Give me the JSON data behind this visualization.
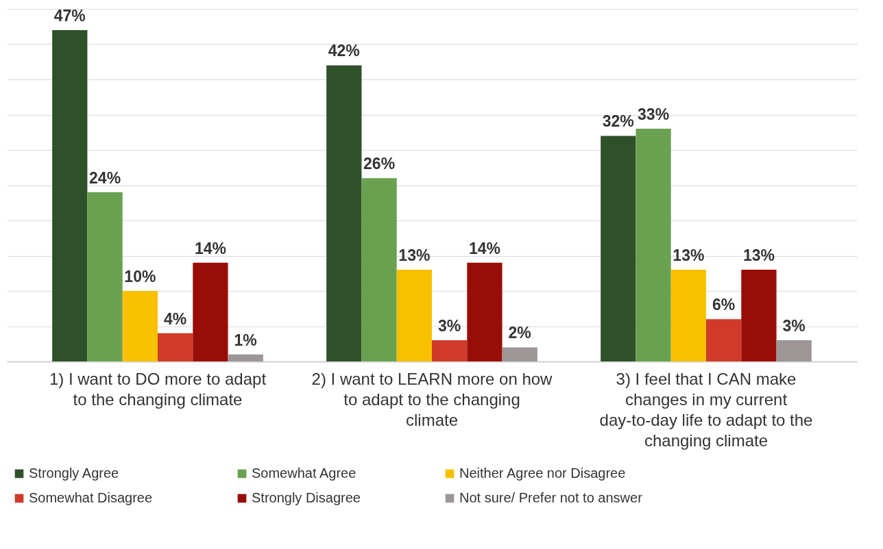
{
  "chart_data": {
    "type": "bar",
    "categories": [
      "1) I want to DO more to adapt to the changing climate",
      "2) I want to LEARN more on how to adapt to the changing climate",
      "3) I feel that I CAN make changes in my current day-to-day life to adapt to the changing climate"
    ],
    "series": [
      {
        "name": "Strongly Agree",
        "color": "#2e5129",
        "values": [
          47,
          42,
          32
        ],
        "value_labels": [
          "47%",
          "42%",
          "32%"
        ]
      },
      {
        "name": "Somewhat Agree",
        "color": "#6aa150",
        "values": [
          24,
          26,
          33
        ],
        "value_labels": [
          "24%",
          "26%",
          "33%"
        ]
      },
      {
        "name": "Neither Agree nor Disagree",
        "color": "#f9c000",
        "values": [
          10,
          13,
          13
        ],
        "value_labels": [
          "10%",
          "13%",
          "13%"
        ]
      },
      {
        "name": "Somewhat Disagree",
        "color": "#d03a2a",
        "values": [
          4,
          3,
          6
        ],
        "value_labels": [
          "4%",
          "3%",
          "6%"
        ]
      },
      {
        "name": "Strongly Disagree",
        "color": "#990d07",
        "values": [
          14,
          14,
          13
        ],
        "value_labels": [
          "14%",
          "14%",
          "13%"
        ]
      },
      {
        "name": "Not sure/ Prefer not to answer",
        "color": "#9c9696",
        "values": [
          1,
          2,
          3
        ],
        "value_labels": [
          "1%",
          "2%",
          "3%"
        ]
      }
    ],
    "ylim": [
      0,
      50
    ],
    "yticks": [
      {
        "value": 0,
        "label": null
      },
      {
        "value": 5,
        "label": null
      },
      {
        "value": 10,
        "label": null
      },
      {
        "value": 15,
        "label": null
      },
      {
        "value": 20,
        "label": null
      },
      {
        "value": 25,
        "label": null
      },
      {
        "value": 30,
        "label": null
      },
      {
        "value": 35,
        "label": null
      },
      {
        "value": 40,
        "label": null
      },
      {
        "value": 45,
        "label": null
      },
      {
        "value": 50,
        "label": null
      }
    ],
    "grid": "y",
    "tick_labels": "x",
    "legend": "bottom"
  }
}
